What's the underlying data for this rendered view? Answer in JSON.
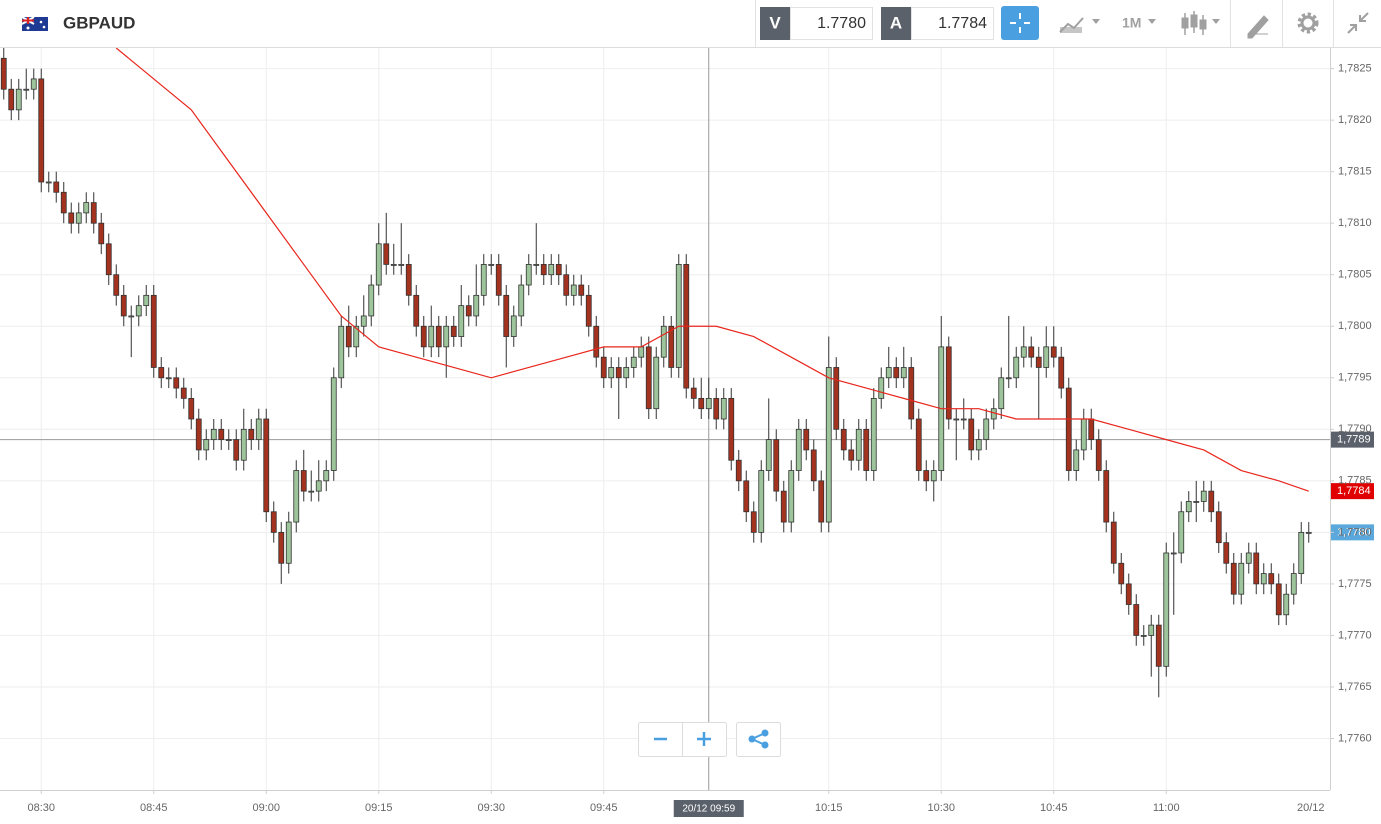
{
  "header": {
    "symbol": "GBPAUD",
    "sell_label": "V",
    "sell_price": "1.7780",
    "buy_label": "A",
    "buy_price": "1.7784",
    "timeframe": "1M"
  },
  "chart_data": {
    "type": "candlestick",
    "up_color": "#9dc49b",
    "down_color": "#a3321f",
    "x": [
      "08:25",
      "08:26",
      "08:27",
      "08:28",
      "08:29",
      "08:30",
      "08:31",
      "08:32",
      "08:33",
      "08:34",
      "08:35",
      "08:36",
      "08:37",
      "08:38",
      "08:39",
      "08:40",
      "08:41",
      "08:42",
      "08:43",
      "08:44",
      "08:45",
      "08:46",
      "08:47",
      "08:48",
      "08:49",
      "08:50",
      "08:51",
      "08:52",
      "08:53",
      "08:54",
      "08:55",
      "08:56",
      "08:57",
      "08:58",
      "08:59",
      "09:00",
      "09:01",
      "09:02",
      "09:03",
      "09:04",
      "09:05",
      "09:06",
      "09:07",
      "09:08",
      "09:09",
      "09:10",
      "09:11",
      "09:12",
      "09:13",
      "09:14",
      "09:15",
      "09:16",
      "09:17",
      "09:18",
      "09:19",
      "09:20",
      "09:21",
      "09:22",
      "09:23",
      "09:24",
      "09:25",
      "09:26",
      "09:27",
      "09:28",
      "09:29",
      "09:30",
      "09:31",
      "09:32",
      "09:33",
      "09:34",
      "09:35",
      "09:36",
      "09:37",
      "09:38",
      "09:39",
      "09:40",
      "09:41",
      "09:42",
      "09:43",
      "09:44",
      "09:45",
      "09:46",
      "09:47",
      "09:48",
      "09:49",
      "09:50",
      "09:51",
      "09:52",
      "09:53",
      "09:54",
      "09:55",
      "09:56",
      "09:57",
      "09:58",
      "09:59",
      "10:00",
      "10:01",
      "10:02",
      "10:03",
      "10:04",
      "10:05",
      "10:06",
      "10:07",
      "10:08",
      "10:09",
      "10:10",
      "10:11",
      "10:12",
      "10:13",
      "10:14",
      "10:15",
      "10:16",
      "10:17",
      "10:18",
      "10:19",
      "10:20",
      "10:21",
      "10:22",
      "10:23",
      "10:24",
      "10:25",
      "10:26",
      "10:27",
      "10:28",
      "10:29",
      "10:30",
      "10:31",
      "10:32",
      "10:33",
      "10:34",
      "10:35",
      "10:36",
      "10:37",
      "10:38",
      "10:39",
      "10:40",
      "10:41",
      "10:42",
      "10:43",
      "10:44",
      "10:45",
      "10:46",
      "10:47",
      "10:48",
      "10:49",
      "10:50",
      "10:51",
      "10:52",
      "10:53",
      "10:54",
      "10:55",
      "10:56",
      "10:57",
      "10:58",
      "10:59",
      "11:00",
      "11:01",
      "11:02",
      "11:03",
      "11:04",
      "11:05",
      "11:06",
      "11:07",
      "11:08",
      "11:09",
      "11:10",
      "11:11",
      "11:12",
      "11:13",
      "11:14",
      "11:15",
      "11:16",
      "11:17",
      "11:18",
      "11:19"
    ],
    "ohlc": [
      [
        1.7826,
        1.7827,
        1.7822,
        1.7823
      ],
      [
        1.7823,
        1.7824,
        1.782,
        1.7821
      ],
      [
        1.7821,
        1.7824,
        1.782,
        1.7823
      ],
      [
        1.7823,
        1.7825,
        1.7822,
        1.7823
      ],
      [
        1.7823,
        1.7825,
        1.7822,
        1.7824
      ],
      [
        1.7824,
        1.7825,
        1.7813,
        1.7814
      ],
      [
        1.7814,
        1.7815,
        1.7813,
        1.7814
      ],
      [
        1.7814,
        1.7815,
        1.7812,
        1.7813
      ],
      [
        1.7813,
        1.7814,
        1.781,
        1.7811
      ],
      [
        1.7811,
        1.7812,
        1.7809,
        1.781
      ],
      [
        1.781,
        1.7812,
        1.7809,
        1.7811
      ],
      [
        1.7811,
        1.7813,
        1.781,
        1.7812
      ],
      [
        1.7812,
        1.7813,
        1.7809,
        1.781
      ],
      [
        1.781,
        1.7811,
        1.7807,
        1.7808
      ],
      [
        1.7808,
        1.7809,
        1.7804,
        1.7805
      ],
      [
        1.7805,
        1.7806,
        1.7802,
        1.7803
      ],
      [
        1.7803,
        1.7804,
        1.78,
        1.7801
      ],
      [
        1.7801,
        1.7802,
        1.7797,
        1.7801
      ],
      [
        1.7801,
        1.7803,
        1.78,
        1.7802
      ],
      [
        1.7802,
        1.7804,
        1.7801,
        1.7803
      ],
      [
        1.7803,
        1.7804,
        1.7795,
        1.7796
      ],
      [
        1.7796,
        1.7797,
        1.7794,
        1.7795
      ],
      [
        1.7795,
        1.7796,
        1.7794,
        1.7795
      ],
      [
        1.7795,
        1.7796,
        1.7793,
        1.7794
      ],
      [
        1.7794,
        1.7795,
        1.7792,
        1.7793
      ],
      [
        1.7793,
        1.7794,
        1.779,
        1.7791
      ],
      [
        1.7791,
        1.7792,
        1.7787,
        1.7788
      ],
      [
        1.7788,
        1.779,
        1.7787,
        1.7789
      ],
      [
        1.7789,
        1.7791,
        1.7788,
        1.779
      ],
      [
        1.779,
        1.7791,
        1.7788,
        1.7789
      ],
      [
        1.7789,
        1.779,
        1.7788,
        1.7789
      ],
      [
        1.7789,
        1.779,
        1.7786,
        1.7787
      ],
      [
        1.7787,
        1.7792,
        1.7786,
        1.779
      ],
      [
        1.779,
        1.7791,
        1.7788,
        1.7789
      ],
      [
        1.7789,
        1.7792,
        1.7788,
        1.7791
      ],
      [
        1.7791,
        1.7792,
        1.7781,
        1.7782
      ],
      [
        1.7782,
        1.7783,
        1.7779,
        1.778
      ],
      [
        1.778,
        1.7781,
        1.7775,
        1.7777
      ],
      [
        1.7777,
        1.7782,
        1.7776,
        1.7781
      ],
      [
        1.7781,
        1.7787,
        1.778,
        1.7786
      ],
      [
        1.7786,
        1.7788,
        1.7783,
        1.7784
      ],
      [
        1.7784,
        1.7786,
        1.7783,
        1.7784
      ],
      [
        1.7784,
        1.7787,
        1.7783,
        1.7785
      ],
      [
        1.7785,
        1.7787,
        1.7784,
        1.7786
      ],
      [
        1.7786,
        1.7796,
        1.7785,
        1.7795
      ],
      [
        1.7795,
        1.7801,
        1.7794,
        1.78
      ],
      [
        1.78,
        1.7802,
        1.7797,
        1.7798
      ],
      [
        1.7798,
        1.7801,
        1.7797,
        1.78
      ],
      [
        1.78,
        1.7803,
        1.7799,
        1.7801
      ],
      [
        1.7801,
        1.7805,
        1.78,
        1.7804
      ],
      [
        1.7804,
        1.781,
        1.7803,
        1.7808
      ],
      [
        1.7808,
        1.7811,
        1.7805,
        1.7806
      ],
      [
        1.7806,
        1.7808,
        1.7805,
        1.7806
      ],
      [
        1.7806,
        1.781,
        1.7805,
        1.7806
      ],
      [
        1.7806,
        1.7807,
        1.7802,
        1.7803
      ],
      [
        1.7803,
        1.7804,
        1.7799,
        1.78
      ],
      [
        1.78,
        1.7801,
        1.7797,
        1.7798
      ],
      [
        1.7798,
        1.7802,
        1.7797,
        1.78
      ],
      [
        1.78,
        1.7801,
        1.7797,
        1.7798
      ],
      [
        1.7798,
        1.7801,
        1.7795,
        1.78
      ],
      [
        1.78,
        1.7801,
        1.7798,
        1.7799
      ],
      [
        1.7799,
        1.7804,
        1.7798,
        1.7802
      ],
      [
        1.7802,
        1.7803,
        1.78,
        1.7801
      ],
      [
        1.7801,
        1.7806,
        1.78,
        1.7803
      ],
      [
        1.7803,
        1.7807,
        1.7802,
        1.7806
      ],
      [
        1.7806,
        1.7807,
        1.7805,
        1.7806
      ],
      [
        1.7806,
        1.7807,
        1.7802,
        1.7803
      ],
      [
        1.7803,
        1.7804,
        1.7796,
        1.7799
      ],
      [
        1.7799,
        1.7802,
        1.7798,
        1.7801
      ],
      [
        1.7801,
        1.7805,
        1.78,
        1.7804
      ],
      [
        1.7804,
        1.7807,
        1.7803,
        1.7806
      ],
      [
        1.7806,
        1.781,
        1.7805,
        1.7806
      ],
      [
        1.7806,
        1.7807,
        1.7804,
        1.7805
      ],
      [
        1.7805,
        1.7807,
        1.7804,
        1.7806
      ],
      [
        1.7806,
        1.7807,
        1.7804,
        1.7805
      ],
      [
        1.7805,
        1.7806,
        1.7802,
        1.7803
      ],
      [
        1.7803,
        1.7805,
        1.7802,
        1.7804
      ],
      [
        1.7804,
        1.7805,
        1.7802,
        1.7803
      ],
      [
        1.7803,
        1.7804,
        1.7799,
        1.78
      ],
      [
        1.78,
        1.7801,
        1.7796,
        1.7797
      ],
      [
        1.7797,
        1.7798,
        1.7794,
        1.7795
      ],
      [
        1.7795,
        1.7797,
        1.7794,
        1.7796
      ],
      [
        1.7796,
        1.7797,
        1.7791,
        1.7795
      ],
      [
        1.7795,
        1.7797,
        1.7794,
        1.7796
      ],
      [
        1.7796,
        1.7798,
        1.7795,
        1.7797
      ],
      [
        1.7797,
        1.7799,
        1.7796,
        1.7798
      ],
      [
        1.7798,
        1.7799,
        1.7791,
        1.7792
      ],
      [
        1.7792,
        1.7798,
        1.7791,
        1.7797
      ],
      [
        1.7797,
        1.7801,
        1.7796,
        1.78
      ],
      [
        1.78,
        1.7801,
        1.7795,
        1.7796
      ],
      [
        1.7796,
        1.7807,
        1.7795,
        1.7806
      ],
      [
        1.7806,
        1.7807,
        1.7793,
        1.7794
      ],
      [
        1.7794,
        1.7795,
        1.7792,
        1.7793
      ],
      [
        1.7793,
        1.7795,
        1.7791,
        1.7792
      ],
      [
        1.7792,
        1.7795,
        1.7791,
        1.7793
      ],
      [
        1.7793,
        1.7794,
        1.779,
        1.7791
      ],
      [
        1.7791,
        1.7794,
        1.779,
        1.7793
      ],
      [
        1.7793,
        1.7794,
        1.7786,
        1.7787
      ],
      [
        1.7787,
        1.7788,
        1.7784,
        1.7785
      ],
      [
        1.7785,
        1.7786,
        1.7781,
        1.7782
      ],
      [
        1.7782,
        1.7783,
        1.7779,
        1.778
      ],
      [
        1.778,
        1.7787,
        1.7779,
        1.7786
      ],
      [
        1.7786,
        1.7793,
        1.7785,
        1.7789
      ],
      [
        1.7789,
        1.779,
        1.7783,
        1.7784
      ],
      [
        1.7784,
        1.7785,
        1.778,
        1.7781
      ],
      [
        1.7781,
        1.7787,
        1.778,
        1.7786
      ],
      [
        1.7786,
        1.7791,
        1.7785,
        1.779
      ],
      [
        1.779,
        1.7791,
        1.7787,
        1.7788
      ],
      [
        1.7788,
        1.7789,
        1.7784,
        1.7785
      ],
      [
        1.7785,
        1.7786,
        1.778,
        1.7781
      ],
      [
        1.7781,
        1.7799,
        1.778,
        1.7796
      ],
      [
        1.7796,
        1.7797,
        1.7789,
        1.779
      ],
      [
        1.779,
        1.7791,
        1.7787,
        1.7788
      ],
      [
        1.7788,
        1.7789,
        1.7786,
        1.7787
      ],
      [
        1.7787,
        1.7791,
        1.7786,
        1.779
      ],
      [
        1.779,
        1.7791,
        1.7785,
        1.7786
      ],
      [
        1.7786,
        1.7794,
        1.7785,
        1.7793
      ],
      [
        1.7793,
        1.7796,
        1.7792,
        1.7795
      ],
      [
        1.7795,
        1.7798,
        1.7794,
        1.7796
      ],
      [
        1.7796,
        1.7797,
        1.7794,
        1.7795
      ],
      [
        1.7795,
        1.7798,
        1.7794,
        1.7796
      ],
      [
        1.7796,
        1.7797,
        1.779,
        1.7791
      ],
      [
        1.7791,
        1.7792,
        1.7785,
        1.7786
      ],
      [
        1.7786,
        1.7787,
        1.7784,
        1.7785
      ],
      [
        1.7785,
        1.7787,
        1.7783,
        1.7786
      ],
      [
        1.7786,
        1.7801,
        1.7785,
        1.7798
      ],
      [
        1.7798,
        1.7799,
        1.779,
        1.7791
      ],
      [
        1.7791,
        1.7792,
        1.7787,
        1.7791
      ],
      [
        1.7791,
        1.7793,
        1.779,
        1.7791
      ],
      [
        1.7791,
        1.7792,
        1.7787,
        1.7788
      ],
      [
        1.7788,
        1.779,
        1.7787,
        1.7789
      ],
      [
        1.7789,
        1.7792,
        1.7788,
        1.7791
      ],
      [
        1.7791,
        1.7793,
        1.779,
        1.7792
      ],
      [
        1.7792,
        1.7796,
        1.7791,
        1.7795
      ],
      [
        1.7795,
        1.7801,
        1.7794,
        1.7795
      ],
      [
        1.7795,
        1.7798,
        1.7794,
        1.7797
      ],
      [
        1.7797,
        1.78,
        1.7796,
        1.7798
      ],
      [
        1.7798,
        1.7799,
        1.7796,
        1.7797
      ],
      [
        1.7797,
        1.7798,
        1.7791,
        1.7796
      ],
      [
        1.7796,
        1.78,
        1.7795,
        1.7798
      ],
      [
        1.7798,
        1.78,
        1.7796,
        1.7797
      ],
      [
        1.7797,
        1.7798,
        1.7793,
        1.7794
      ],
      [
        1.7794,
        1.7795,
        1.7785,
        1.7786
      ],
      [
        1.7786,
        1.7789,
        1.7785,
        1.7788
      ],
      [
        1.7788,
        1.7792,
        1.7787,
        1.7791
      ],
      [
        1.7791,
        1.7792,
        1.7788,
        1.7789
      ],
      [
        1.7789,
        1.779,
        1.7785,
        1.7786
      ],
      [
        1.7786,
        1.7787,
        1.778,
        1.7781
      ],
      [
        1.7781,
        1.7782,
        1.7776,
        1.7777
      ],
      [
        1.7777,
        1.7778,
        1.7774,
        1.7775
      ],
      [
        1.7775,
        1.7776,
        1.7772,
        1.7773
      ],
      [
        1.7773,
        1.7774,
        1.7769,
        1.777
      ],
      [
        1.777,
        1.7771,
        1.7769,
        1.777
      ],
      [
        1.777,
        1.7772,
        1.7766,
        1.7771
      ],
      [
        1.7771,
        1.7772,
        1.7764,
        1.7767
      ],
      [
        1.7767,
        1.7779,
        1.7766,
        1.7778
      ],
      [
        1.7778,
        1.778,
        1.7772,
        1.7778
      ],
      [
        1.7778,
        1.7783,
        1.7777,
        1.7782
      ],
      [
        1.7782,
        1.7784,
        1.7781,
        1.7783
      ],
      [
        1.7783,
        1.7785,
        1.7781,
        1.7783
      ],
      [
        1.7783,
        1.7785,
        1.7782,
        1.7784
      ],
      [
        1.7784,
        1.7785,
        1.7781,
        1.7782
      ],
      [
        1.7782,
        1.7783,
        1.7778,
        1.7779
      ],
      [
        1.7779,
        1.778,
        1.7776,
        1.7777
      ],
      [
        1.7777,
        1.7778,
        1.7773,
        1.7774
      ],
      [
        1.7774,
        1.7778,
        1.7773,
        1.7777
      ],
      [
        1.7777,
        1.7779,
        1.7776,
        1.7778
      ],
      [
        1.7778,
        1.7779,
        1.7774,
        1.7775
      ],
      [
        1.7775,
        1.7777,
        1.7774,
        1.7776
      ],
      [
        1.7776,
        1.7777,
        1.7774,
        1.7775
      ],
      [
        1.7775,
        1.7776,
        1.7771,
        1.7772
      ],
      [
        1.7772,
        1.7775,
        1.7771,
        1.7774
      ],
      [
        1.7774,
        1.7777,
        1.7773,
        1.7776
      ],
      [
        1.7776,
        1.7781,
        1.7775,
        1.778
      ],
      [
        1.778,
        1.7781,
        1.7779,
        1.778
      ]
    ],
    "ma": {
      "color": "#e8261c",
      "x": [
        "08:40",
        "08:45",
        "08:50",
        "08:55",
        "09:00",
        "09:05",
        "09:10",
        "09:15",
        "09:20",
        "09:25",
        "09:30",
        "09:35",
        "09:40",
        "09:45",
        "09:50",
        "09:55",
        "10:00",
        "10:05",
        "10:10",
        "10:15",
        "10:20",
        "10:25",
        "10:30",
        "10:35",
        "10:40",
        "10:45",
        "10:50",
        "10:55",
        "11:00",
        "11:05",
        "11:10",
        "11:15",
        "11:19"
      ],
      "values": [
        1.7827,
        1.7824,
        1.7821,
        1.7816,
        1.7811,
        1.7806,
        1.7801,
        1.7798,
        1.7797,
        1.7796,
        1.7795,
        1.7796,
        1.7797,
        1.7798,
        1.7798,
        1.78,
        1.78,
        1.7799,
        1.7797,
        1.7795,
        1.7794,
        1.7793,
        1.7792,
        1.7792,
        1.7791,
        1.7791,
        1.7791,
        1.779,
        1.7789,
        1.7788,
        1.7786,
        1.7785,
        1.7784
      ]
    },
    "ylim": [
      1.7755,
      1.7827
    ],
    "yticks": [
      {
        "value": 1.7825,
        "label": "1,7825"
      },
      {
        "value": 1.782,
        "label": "1,7820"
      },
      {
        "value": 1.7815,
        "label": "1,7815"
      },
      {
        "value": 1.781,
        "label": "1,7810"
      },
      {
        "value": 1.7805,
        "label": "1,7805"
      },
      {
        "value": 1.78,
        "label": "1,7800"
      },
      {
        "value": 1.7795,
        "label": "1,7795"
      },
      {
        "value": 1.779,
        "label": "1,7790"
      },
      {
        "value": 1.7785,
        "label": "1,7785"
      },
      {
        "value": 1.778,
        "label": "1,7780"
      },
      {
        "value": 1.7775,
        "label": "1,7775"
      },
      {
        "value": 1.777,
        "label": "1,7770"
      },
      {
        "value": 1.7765,
        "label": "1,7765"
      },
      {
        "value": 1.776,
        "label": "1,7760"
      }
    ],
    "xticks": [
      "08:30",
      "08:45",
      "09:00",
      "09:15",
      "09:30",
      "09:45",
      "10:15",
      "10:30",
      "10:45",
      "11:00"
    ],
    "end_label": "20/12",
    "grid": true,
    "crosshair": {
      "price": {
        "value": 1.7789,
        "label": "1,7789"
      },
      "time": "09:59",
      "time_label": "20/12 09:59"
    },
    "price_tags": [
      {
        "value": 1.7784,
        "label": "1,7784",
        "color": "#e00000"
      },
      {
        "value": 1.778,
        "label": "1,7780",
        "color": "#5aa8dc"
      }
    ]
  }
}
